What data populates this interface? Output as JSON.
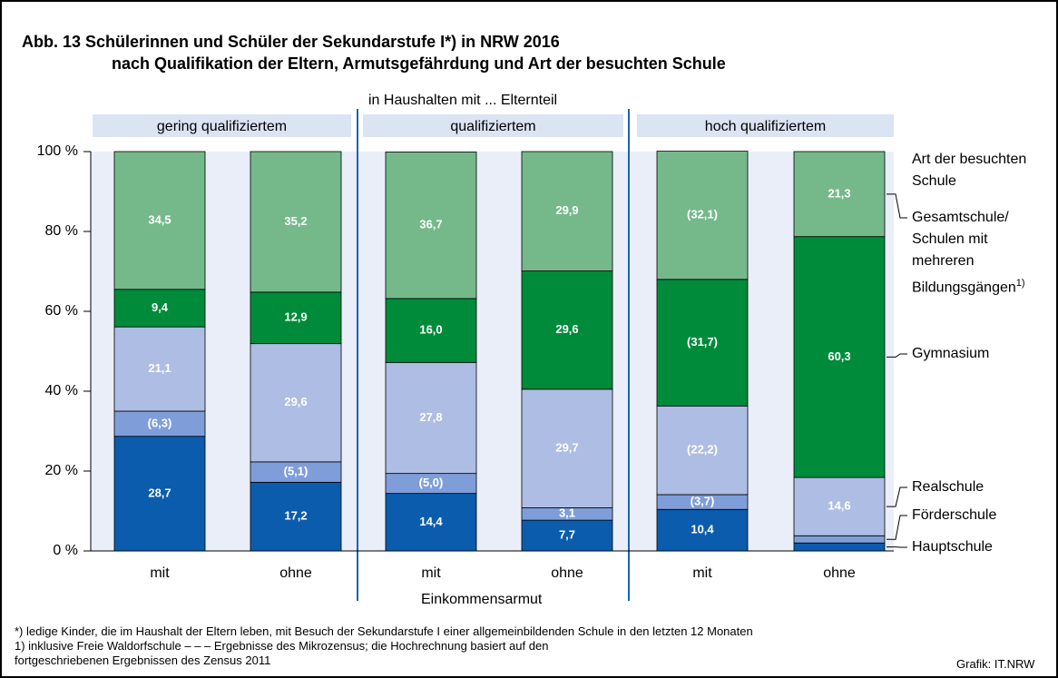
{
  "chart_data": {
    "type": "stacked_bar",
    "title": "Abb. 13  Schülerinnen und Schüler der Sekundarstufe I*) in NRW 2016",
    "subtitle": "nach Qualifikation der Eltern, Armutsgefährdung und Art der besuchten Schule",
    "group_super_label": "in Haushalten mit ... Elternteil",
    "groups": [
      "gering qualifiziertem",
      "qualifiziertem",
      "hoch qualifiziertem"
    ],
    "categories": [
      "mit",
      "ohne",
      "mit",
      "ohne",
      "mit",
      "ohne"
    ],
    "xlabel": "Einkommensarmut",
    "legend_title": "Art der besuchten Schule",
    "ylim": [
      0,
      100
    ],
    "yticks": [
      {
        "value": 0,
        "label": "0 %"
      },
      {
        "value": 20,
        "label": "20 %"
      },
      {
        "value": 40,
        "label": "40 %"
      },
      {
        "value": 60,
        "label": "60 %"
      },
      {
        "value": 80,
        "label": "80 %"
      },
      {
        "value": 100,
        "label": "100 %"
      }
    ],
    "series": [
      {
        "name": "Hauptschule",
        "color": "#0b5cad",
        "values": [
          28.7,
          17.2,
          14.4,
          7.7,
          10.4,
          2.0
        ],
        "value_labels": [
          "28,7",
          "17,2",
          "14,4",
          "7,7",
          "10,4",
          null
        ]
      },
      {
        "name": "Förderschule",
        "color": "#7f9ed9",
        "values": [
          6.3,
          5.1,
          5.0,
          3.1,
          3.7,
          1.8
        ],
        "value_labels": [
          "(6,3)",
          "(5,1)",
          "(5,0)",
          "3,1",
          "(3,7)",
          null
        ]
      },
      {
        "name": "Realschule",
        "color": "#aebde3",
        "values": [
          21.1,
          29.6,
          27.8,
          29.7,
          22.2,
          14.6
        ],
        "value_labels": [
          "21,1",
          "29,6",
          "27,8",
          "29,7",
          "(22,2)",
          "14,6"
        ]
      },
      {
        "name": "Gymnasium",
        "color": "#008b3b",
        "values": [
          9.4,
          12.9,
          16.0,
          29.6,
          31.7,
          60.3
        ],
        "value_labels": [
          "9,4",
          "12,9",
          "16,0",
          "29,6",
          "(31,7)",
          "60,3"
        ]
      },
      {
        "name": "Gesamtschule/ Schulen mit mehreren Bildungsgängen",
        "footnote_marker": "1)",
        "color": "#75b98b",
        "values": [
          34.5,
          35.2,
          36.7,
          29.9,
          32.1,
          21.3
        ],
        "value_labels": [
          "34,5",
          "35,2",
          "36,7",
          "29,9",
          "(32,1)",
          "21,3"
        ]
      }
    ],
    "footnotes": [
      "*) ledige Kinder, die im Haushalt der Eltern leben, mit Besuch der Sekundarstufe I einer allgemeinbildenden Schule in den letzten 12 Monaten",
      "1) inklusive Freie Waldorfschule – – – Ergebnisse des Mikrozensus; die Hochrechnung basiert auf den",
      "fortgeschriebenen Ergebnissen des Zensus 2011"
    ],
    "source": "Grafik: IT.NRW"
  }
}
